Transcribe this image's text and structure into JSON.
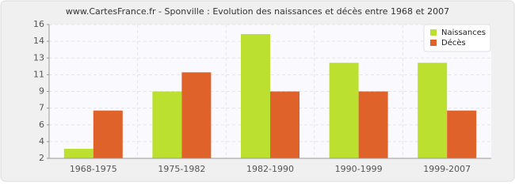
{
  "chart_data": {
    "type": "bar",
    "title": "www.CartesFrance.fr - Sponville : Evolution des naissances et décès entre 1968 et 2007",
    "categories": [
      "1968-1975",
      "1975-1982",
      "1982-1990",
      "1990-1999",
      "1999-2007"
    ],
    "series": [
      {
        "name": "Naissances",
        "color": "#bbe02f",
        "values": [
          3,
          9,
          15,
          12,
          12
        ]
      },
      {
        "name": "Décès",
        "color": "#e0622b",
        "values": [
          7,
          11,
          9,
          9,
          7
        ]
      }
    ],
    "ylim": [
      2,
      16
    ],
    "yticks": [
      2,
      {
        "value": 3.75,
        "label": "4"
      },
      {
        "value": 5.5,
        "label": "6"
      },
      {
        "value": 7.25,
        "label": "7"
      },
      9,
      {
        "value": 10.75,
        "label": "11"
      },
      {
        "value": 12.5,
        "label": "13"
      },
      {
        "value": 14.25,
        "label": "14"
      },
      16
    ],
    "grid": true,
    "legend": "top-right"
  }
}
